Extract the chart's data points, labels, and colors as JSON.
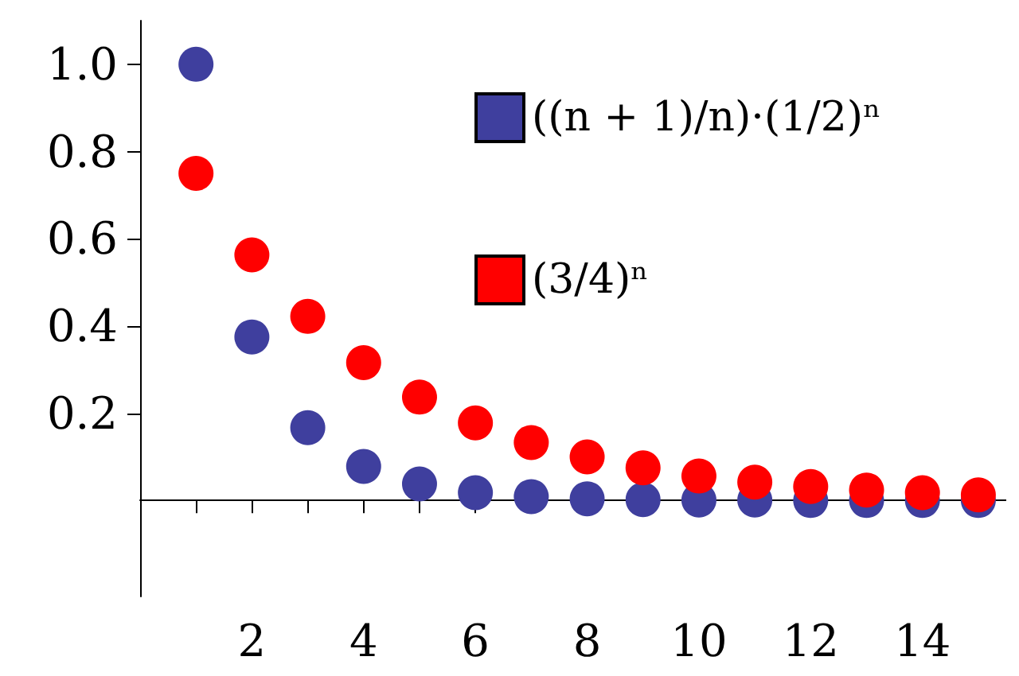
{
  "chart_data": {
    "type": "scatter",
    "x": [
      1,
      2,
      3,
      4,
      5,
      6,
      7,
      8,
      9,
      10,
      11,
      12,
      13,
      14,
      15
    ],
    "series": [
      {
        "name": "((n + 1)/n)·(1/2)ⁿ",
        "color": "#3f3f9e",
        "values": [
          1.0,
          0.375,
          0.167,
          0.078,
          0.038,
          0.018,
          0.009,
          0.004,
          0.002,
          0.001,
          0.001,
          0.0,
          0.0,
          0.0,
          0.0
        ]
      },
      {
        "name": "(3/4)ⁿ",
        "color": "#ff0000",
        "values": [
          0.75,
          0.563,
          0.422,
          0.316,
          0.237,
          0.178,
          0.133,
          0.1,
          0.075,
          0.056,
          0.042,
          0.032,
          0.024,
          0.018,
          0.013
        ]
      }
    ],
    "xlim": [
      0,
      15.5
    ],
    "xticks": [
      {
        "value": 1,
        "label": null
      },
      2,
      {
        "value": 3,
        "label": null
      },
      4,
      {
        "value": 5,
        "label": null
      },
      6,
      {
        "value": 7,
        "label": null
      },
      8,
      {
        "value": 9,
        "label": null
      },
      10,
      {
        "value": 11,
        "label": null
      },
      12,
      {
        "value": 13,
        "label": null
      },
      14,
      {
        "value": 15,
        "label": null
      }
    ],
    "ylim": [
      -0.22,
      1.1
    ],
    "yticks": [
      0.2,
      0.4,
      0.6,
      0.8,
      {
        "value": 1,
        "label": "1.0"
      }
    ],
    "legend": "top",
    "marker": "circle",
    "grid": false
  }
}
